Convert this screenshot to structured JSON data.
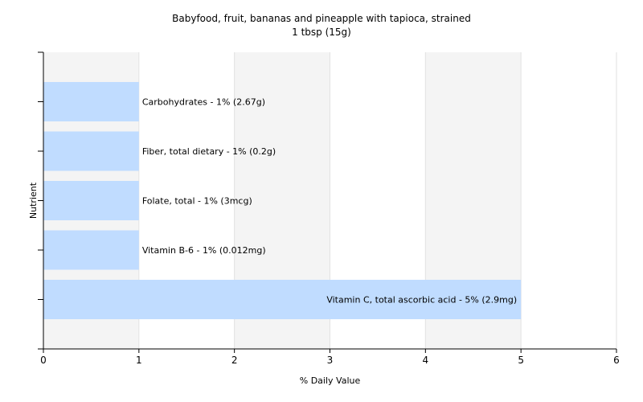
{
  "chart_data": {
    "type": "bar",
    "orientation": "horizontal",
    "title": "Babyfood, fruit, bananas and pineapple with tapioca, strained",
    "subtitle": "1 tbsp (15g)",
    "xlabel": "% Daily Value",
    "ylabel": "Nutrient",
    "xlim": [
      0,
      6
    ],
    "xticks": [
      "0",
      "1",
      "2",
      "3",
      "4",
      "5",
      "6"
    ],
    "grid": true,
    "bar_color": "#c0dcff",
    "categories": [
      "Carbohydrates",
      "Fiber, total dietary",
      "Folate, total",
      "Vitamin B-6",
      "Vitamin C, total ascorbic acid"
    ],
    "values": [
      1,
      1,
      1,
      1,
      5
    ],
    "labels": [
      "Carbohydrates - 1% (2.67g)",
      "Fiber, total dietary - 1% (0.2g)",
      "Folate, total - 1% (3mcg)",
      "Vitamin B-6 - 1% (0.012mg)",
      "Vitamin C, total ascorbic acid - 5% (2.9mg)"
    ]
  }
}
